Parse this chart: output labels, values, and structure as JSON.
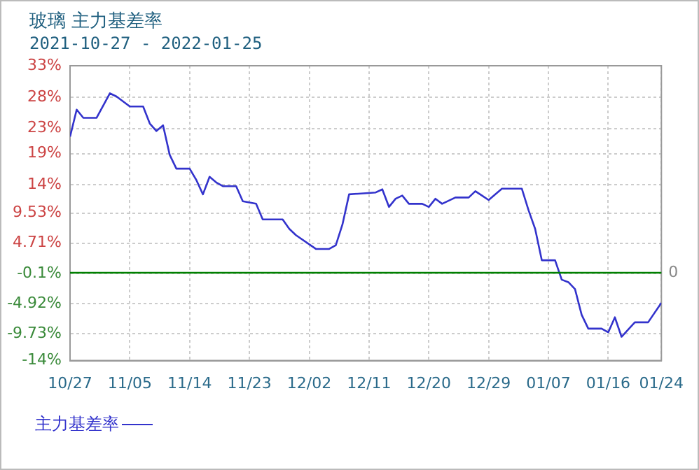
{
  "chart_data": {
    "type": "line",
    "title": "玻璃  主力基差率",
    "subtitle": "2021-10-27 - 2022-01-25",
    "xlim": [
      "2021-10-27",
      "2022-01-24"
    ],
    "xticks": [
      {
        "value": "2021-10-27",
        "label": "10/27"
      },
      {
        "value": "2021-11-05",
        "label": "11/05"
      },
      {
        "value": "2021-11-14",
        "label": "11/14"
      },
      {
        "value": "2021-11-23",
        "label": "11/23"
      },
      {
        "value": "2021-12-02",
        "label": "12/02"
      },
      {
        "value": "2021-12-11",
        "label": "12/11"
      },
      {
        "value": "2021-12-20",
        "label": "12/20"
      },
      {
        "value": "2021-12-29",
        "label": "12/29"
      },
      {
        "value": "2022-01-07",
        "label": "01/07"
      },
      {
        "value": "2022-01-16",
        "label": "01/16"
      },
      {
        "value": "2022-01-24",
        "label": "01/24"
      }
    ],
    "ylim": [
      -14,
      33
    ],
    "yticks": [
      {
        "value": 33,
        "label": "33%"
      },
      {
        "value": 28,
        "label": "28%"
      },
      {
        "value": 23,
        "label": "23%"
      },
      {
        "value": 19,
        "label": "19%"
      },
      {
        "value": 14,
        "label": "14%"
      },
      {
        "value": 9.53,
        "label": "9.53%"
      },
      {
        "value": 4.71,
        "label": "4.71%"
      },
      {
        "value": -0.1,
        "label": "-0.1%"
      },
      {
        "value": -4.92,
        "label": "-4.92%"
      },
      {
        "value": -9.73,
        "label": "-9.73%"
      },
      {
        "value": -14,
        "label": "-14%"
      }
    ],
    "x": [
      "2021-10-27",
      "2021-10-28",
      "2021-10-29",
      "2021-10-31",
      "2021-11-02",
      "2021-11-03",
      "2021-11-05",
      "2021-11-07",
      "2021-11-08",
      "2021-11-09",
      "2021-11-10",
      "2021-11-11",
      "2021-11-12",
      "2021-11-14",
      "2021-11-15",
      "2021-11-16",
      "2021-11-17",
      "2021-11-18",
      "2021-11-19",
      "2021-11-21",
      "2021-11-22",
      "2021-11-24",
      "2021-11-25",
      "2021-11-28",
      "2021-11-29",
      "2021-11-30",
      "2021-12-03",
      "2021-12-05",
      "2021-12-06",
      "2021-12-07",
      "2021-12-08",
      "2021-12-12",
      "2021-12-13",
      "2021-12-14",
      "2021-12-15",
      "2021-12-16",
      "2021-12-17",
      "2021-12-19",
      "2021-12-20",
      "2021-12-21",
      "2021-12-22",
      "2021-12-24",
      "2021-12-26",
      "2021-12-27",
      "2021-12-28",
      "2021-12-29",
      "2021-12-31",
      "2022-01-03",
      "2022-01-04",
      "2022-01-05",
      "2022-01-06",
      "2022-01-08",
      "2022-01-09",
      "2022-01-10",
      "2022-01-11",
      "2022-01-12",
      "2022-01-13",
      "2022-01-15",
      "2022-01-16",
      "2022-01-17",
      "2022-01-18",
      "2022-01-20",
      "2022-01-22",
      "2022-01-24"
    ],
    "series": [
      {
        "name": "主力基差率",
        "color": "#3333cc",
        "values": [
          21.7,
          26.0,
          24.7,
          24.7,
          28.6,
          28.1,
          26.5,
          26.5,
          23.8,
          22.6,
          23.5,
          18.8,
          16.6,
          16.6,
          14.8,
          12.5,
          15.3,
          14.4,
          13.8,
          13.8,
          11.4,
          11.0,
          8.5,
          8.5,
          7.0,
          6.0,
          3.8,
          3.8,
          4.4,
          7.7,
          12.5,
          12.8,
          13.3,
          10.5,
          11.8,
          12.3,
          11.0,
          11.0,
          10.5,
          11.8,
          11.0,
          12.0,
          12.0,
          13.0,
          12.3,
          11.6,
          13.4,
          13.4,
          10.0,
          7.0,
          2.0,
          2.0,
          -1.1,
          -1.5,
          -2.6,
          -6.7,
          -8.9,
          -8.9,
          -9.5,
          -7.1,
          -10.2,
          -7.9,
          -7.9,
          -4.8
        ]
      }
    ],
    "ref_lines": [
      {
        "axis": "y",
        "value": 0,
        "label": "0",
        "color": "#008000"
      }
    ],
    "grid": true,
    "legend": "bottom",
    "marker": "none",
    "line_style": "solid"
  }
}
